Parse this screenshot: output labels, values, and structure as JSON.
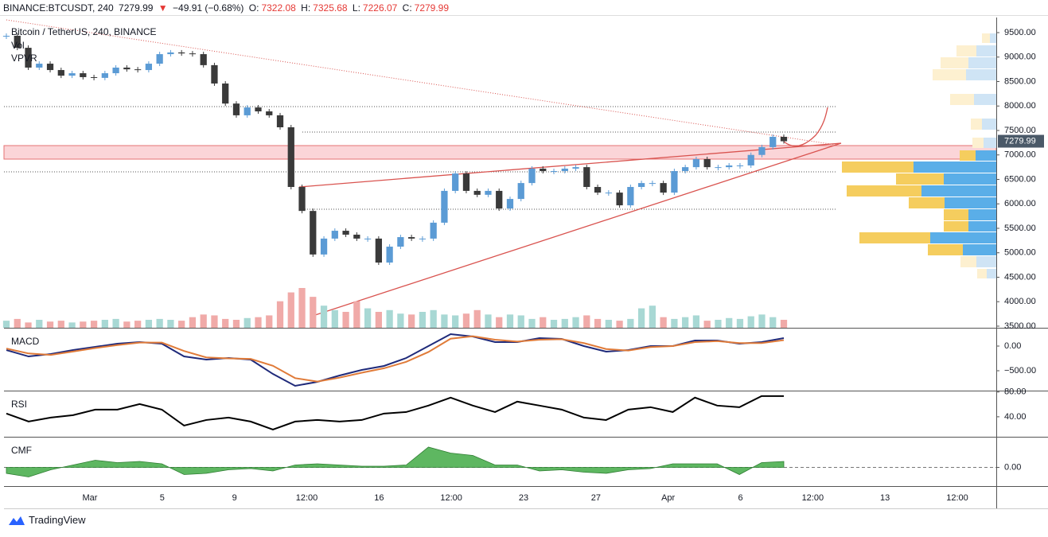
{
  "header": {
    "symbol": "BINANCE:BTCUSDT, 240",
    "last": "7279.99",
    "arrow": "▼",
    "change": "−49.91 (−0.68%)",
    "o_label": "O:",
    "o": "7322.08",
    "h_label": "H:",
    "h": "7325.68",
    "l_label": "L:",
    "l": "7226.07",
    "c_label": "C:",
    "c": "7279.99"
  },
  "footer": {
    "brand": "TradingView"
  },
  "chart_data": [
    {
      "type": "candlestick",
      "title": "Bitcoin / TetherUS, 240, BINANCE",
      "legend": [
        "Vol",
        "VPVR"
      ],
      "xtick_labels": [
        "Mar",
        "5",
        "9",
        "12:00",
        "16",
        "12:00",
        "23",
        "27",
        "Apr",
        "6",
        "12:00",
        "13",
        "12:00"
      ],
      "values": [
        9435,
        9190,
        8785,
        8865,
        8735,
        8620,
        8670,
        8590,
        8575,
        8670,
        8785,
        8750,
        8735,
        8865,
        9060,
        9095,
        9075,
        9060,
        8835,
        8460,
        8050,
        7810,
        7970,
        7890,
        7810,
        7565,
        6345,
        5855,
        4965,
        5290,
        5450,
        5370,
        5290,
        5290,
        4800,
        5125,
        5320,
        5290,
        5290,
        5615,
        6265,
        6620,
        6265,
        6185,
        6265,
        5905,
        6100,
        6425,
        6720,
        6670,
        6670,
        6720,
        6750,
        6345,
        6230,
        6230,
        5970,
        6345,
        6425,
        6425,
        6230,
        6670,
        6750,
        6915,
        6750,
        6750,
        6785,
        6785,
        7000,
        7160,
        7370,
        7280
      ],
      "volume": [
        8,
        10,
        6,
        9,
        7,
        8,
        6,
        7,
        8,
        9,
        10,
        7,
        8,
        9,
        10,
        9,
        8,
        12,
        15,
        14,
        10,
        9,
        11,
        12,
        14,
        30,
        40,
        45,
        35,
        25,
        20,
        18,
        30,
        22,
        18,
        20,
        16,
        15,
        18,
        20,
        15,
        14,
        16,
        20,
        15,
        12,
        15,
        14,
        10,
        12,
        9,
        10,
        12,
        14,
        10,
        9,
        8,
        10,
        22,
        25,
        12,
        10,
        12,
        14,
        8,
        9,
        11,
        10,
        13,
        15,
        12,
        9
      ],
      "up_color": "#5b9bd5",
      "down_color": "#3a3a3a",
      "volume_up_color": "#a8d8d4",
      "volume_down_color": "#f0aaa8",
      "ylim": [
        3467,
        9809
      ],
      "yticks": [
        {
          "value": 9500,
          "label": "9500.00"
        },
        {
          "value": 9000,
          "label": "9000.00"
        },
        {
          "value": 8500,
          "label": "8500.00"
        },
        {
          "value": 8000,
          "label": "8000.00"
        },
        {
          "value": 7500,
          "label": "7500.00"
        },
        {
          "value": 7000,
          "label": "7000.00"
        },
        {
          "value": 6500,
          "label": "6500.00"
        },
        {
          "value": 6000,
          "label": "6000.00"
        },
        {
          "value": 5500,
          "label": "5500.00"
        },
        {
          "value": 5000,
          "label": "5000.00"
        },
        {
          "value": 4500,
          "label": "4500.00"
        },
        {
          "value": 4000,
          "label": "4000.00"
        },
        {
          "value": 3500,
          "label": "3500.00"
        }
      ]
    },
    {
      "type": "line",
      "title": "MACD",
      "ylim": [
        -887,
        355
      ],
      "yticks": [
        {
          "value": 0,
          "label": "0.00"
        },
        {
          "value": -500,
          "label": "−500.00"
        }
      ],
      "series": [
        {
          "color": "#1f2a7a",
          "values": [
            -81,
            -210,
            -161,
            -81,
            -16,
            48,
            81,
            48,
            -210,
            -274,
            -242,
            -274,
            -565,
            -806,
            -726,
            -597,
            -484,
            -403,
            -242,
            0,
            242,
            194,
            81,
            81,
            161,
            145,
            0,
            -113,
            -81,
            0,
            0,
            113,
            113,
            48,
            81,
            161
          ]
        },
        {
          "color": "#e07b39",
          "values": [
            -50,
            -150,
            -180,
            -110,
            -40,
            20,
            70,
            70,
            -100,
            -230,
            -250,
            -260,
            -400,
            -650,
            -720,
            -640,
            -540,
            -450,
            -320,
            -120,
            150,
            200,
            130,
            90,
            130,
            140,
            60,
            -60,
            -90,
            -20,
            0,
            80,
            100,
            60,
            60,
            120
          ]
        }
      ]
    },
    {
      "type": "line",
      "title": "RSI",
      "ylim": [
        9,
        81
      ],
      "yticks": [
        {
          "value": 80,
          "label": "80.00"
        },
        {
          "value": 40,
          "label": "40.00"
        }
      ],
      "series": [
        {
          "color": "#000000",
          "values": [
            45.2,
            32.3,
            38.7,
            42.6,
            51.6,
            51.6,
            60.6,
            51.6,
            25.8,
            34.8,
            38.7,
            32.3,
            19.4,
            32.3,
            34.8,
            32.3,
            34.8,
            45.2,
            47.7,
            58.1,
            71,
            58.1,
            47.7,
            64.5,
            58.1,
            51.6,
            38.7,
            34.8,
            51.6,
            55.5,
            47.7,
            71,
            58.1,
            55.5,
            73.5,
            73.5
          ]
        }
      ]
    },
    {
      "type": "area",
      "title": "CMF",
      "ylim": [
        -0.15,
        0.25
      ],
      "color": "#4caf50",
      "yticks": [
        {
          "value": 0,
          "label": "0.00"
        }
      ],
      "values": [
        -0.05,
        -0.08,
        -0.02,
        0.02,
        0.06,
        0.04,
        0.05,
        0.03,
        -0.06,
        -0.05,
        -0.02,
        -0.01,
        -0.03,
        0.02,
        0.03,
        0.02,
        0.01,
        0.01,
        0.02,
        0.17,
        0.12,
        0.1,
        0.02,
        0.02,
        -0.03,
        -0.02,
        -0.04,
        -0.05,
        -0.02,
        -0.01,
        0.03,
        0.03,
        0.03,
        -0.06,
        0.04,
        0.05
      ]
    }
  ]
}
